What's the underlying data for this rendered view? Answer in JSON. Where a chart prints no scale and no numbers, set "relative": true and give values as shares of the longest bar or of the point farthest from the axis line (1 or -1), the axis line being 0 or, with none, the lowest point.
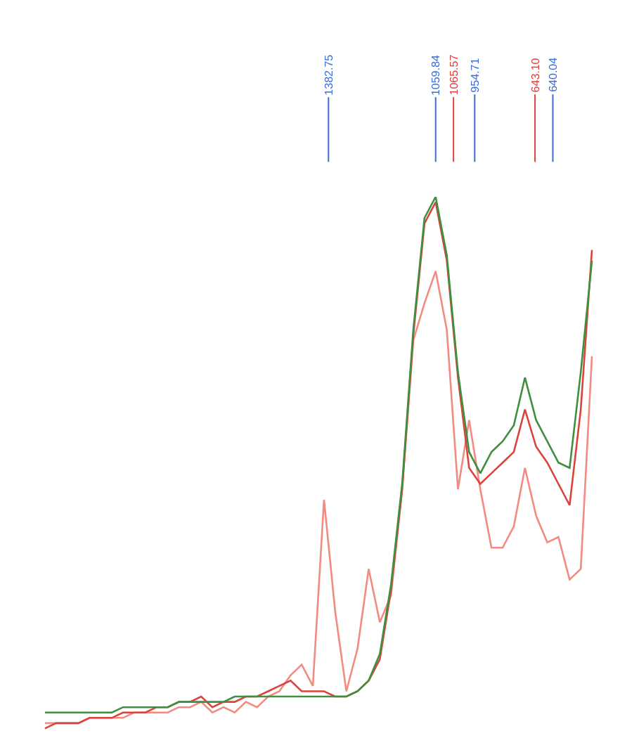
{
  "chart_data": {
    "type": "line",
    "relative": true,
    "categories": [
      null,
      null,
      null,
      null,
      null,
      null,
      null,
      null,
      null,
      null,
      null,
      null,
      null,
      null,
      null,
      null,
      null,
      null,
      null,
      null,
      null,
      null,
      null,
      null,
      null,
      null,
      null,
      null,
      null,
      null,
      null,
      null,
      null,
      null,
      null,
      null,
      null,
      null,
      null,
      null,
      null,
      null,
      null,
      null,
      null,
      null,
      null,
      null,
      null,
      null
    ],
    "series": [
      {
        "color": "#f28b82",
        "values": [
          0.01,
          0.01,
          0.01,
          0.01,
          0.02,
          0.02,
          0.02,
          0.02,
          0.03,
          0.03,
          0.03,
          0.03,
          0.04,
          0.04,
          0.05,
          0.03,
          0.04,
          0.03,
          0.05,
          0.04,
          0.06,
          0.07,
          0.1,
          0.12,
          0.08,
          0.43,
          0.22,
          0.07,
          0.15,
          0.3,
          0.2,
          0.25,
          0.45,
          0.73,
          0.8,
          0.86,
          0.75,
          0.45,
          0.58,
          0.45,
          0.34,
          0.34,
          0.38,
          0.49,
          0.4,
          0.35,
          0.36,
          0.28,
          0.3,
          0.7
        ]
      },
      {
        "color": "#d9453d",
        "values": [
          0.0,
          0.01,
          0.01,
          0.01,
          0.02,
          0.02,
          0.02,
          0.03,
          0.03,
          0.03,
          0.04,
          0.04,
          0.05,
          0.05,
          0.06,
          0.04,
          0.05,
          0.05,
          0.06,
          0.06,
          0.07,
          0.08,
          0.09,
          0.07,
          0.07,
          0.07,
          0.06,
          0.06,
          0.07,
          0.09,
          0.13,
          0.26,
          0.45,
          0.74,
          0.95,
          0.99,
          0.88,
          0.66,
          0.49,
          0.46,
          0.48,
          0.5,
          0.52,
          0.6,
          0.53,
          0.5,
          0.46,
          0.42,
          0.6,
          0.9
        ]
      },
      {
        "color": "#3f8f3f",
        "values": [
          0.03,
          0.03,
          0.03,
          0.03,
          0.03,
          0.03,
          0.03,
          0.04,
          0.04,
          0.04,
          0.04,
          0.04,
          0.05,
          0.05,
          0.05,
          0.05,
          0.05,
          0.06,
          0.06,
          0.06,
          0.06,
          0.06,
          0.06,
          0.06,
          0.06,
          0.06,
          0.06,
          0.06,
          0.07,
          0.09,
          0.14,
          0.27,
          0.46,
          0.75,
          0.96,
          1.0,
          0.89,
          0.67,
          0.52,
          0.48,
          0.52,
          0.54,
          0.57,
          0.66,
          0.58,
          0.54,
          0.5,
          0.49,
          0.67,
          0.88
        ]
      }
    ],
    "annotations": [
      "1382.75",
      "1059.84",
      "1065.57",
      "954.71",
      "643.10",
      "640.04"
    ]
  }
}
